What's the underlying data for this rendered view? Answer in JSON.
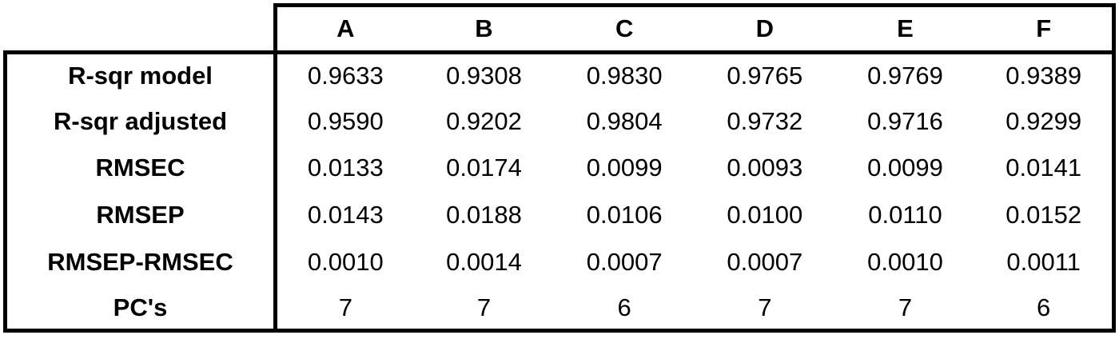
{
  "table": {
    "columns": [
      "A",
      "B",
      "C",
      "D",
      "E",
      "F"
    ],
    "rows": [
      {
        "label": "R-sqr model",
        "values": [
          "0.9633",
          "0.9308",
          "0.9830",
          "0.9765",
          "0.9769",
          "0.9389"
        ]
      },
      {
        "label": "R-sqr adjusted",
        "values": [
          "0.9590",
          "0.9202",
          "0.9804",
          "0.9732",
          "0.9716",
          "0.9299"
        ]
      },
      {
        "label": "RMSEC",
        "values": [
          "0.0133",
          "0.0174",
          "0.0099",
          "0.0093",
          "0.0099",
          "0.0141"
        ]
      },
      {
        "label": "RMSEP",
        "values": [
          "0.0143",
          "0.0188",
          "0.0106",
          "0.0100",
          "0.0110",
          "0.0152"
        ]
      },
      {
        "label": "RMSEP-RMSEC",
        "values": [
          "0.0010",
          "0.0014",
          "0.0007",
          "0.0007",
          "0.0010",
          "0.0011"
        ]
      },
      {
        "label": "PC's",
        "values": [
          "7",
          "7",
          "6",
          "7",
          "7",
          "6"
        ]
      }
    ]
  },
  "chart_data": {
    "type": "table",
    "categories": [
      "A",
      "B",
      "C",
      "D",
      "E",
      "F"
    ],
    "series": [
      {
        "name": "R-sqr model",
        "values": [
          0.9633,
          0.9308,
          0.983,
          0.9765,
          0.9769,
          0.9389
        ]
      },
      {
        "name": "R-sqr adjusted",
        "values": [
          0.959,
          0.9202,
          0.9804,
          0.9732,
          0.9716,
          0.9299
        ]
      },
      {
        "name": "RMSEC",
        "values": [
          0.0133,
          0.0174,
          0.0099,
          0.0093,
          0.0099,
          0.0141
        ]
      },
      {
        "name": "RMSEP",
        "values": [
          0.0143,
          0.0188,
          0.0106,
          0.01,
          0.011,
          0.0152
        ]
      },
      {
        "name": "RMSEP-RMSEC",
        "values": [
          0.001,
          0.0014,
          0.0007,
          0.0007,
          0.001,
          0.0011
        ]
      },
      {
        "name": "PC's",
        "values": [
          7,
          7,
          6,
          7,
          7,
          6
        ]
      }
    ],
    "title": "",
    "colors": {
      "border": "#000000",
      "background": "#ffffff",
      "text": "#000000"
    }
  }
}
